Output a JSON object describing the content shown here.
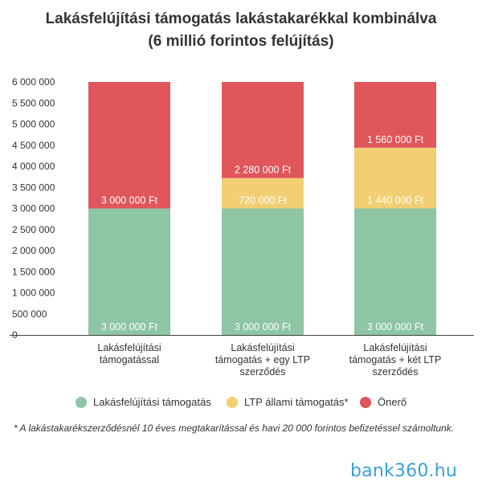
{
  "title": {
    "line1": "Lakásfelújítási támogatás lakástakarékkal kombinálva",
    "line2": "(6 millió forintos felújítás)"
  },
  "chart_data": {
    "type": "bar",
    "stacked": true,
    "categories": [
      [
        "Lakásfelújítási",
        "támogatással"
      ],
      [
        "Lakásfelújítási",
        "támogatás + egy LTP",
        "szerződés"
      ],
      [
        "Lakásfelújítási",
        "támogatás + két LTP",
        "szerződés"
      ]
    ],
    "series": [
      {
        "name": "Lakásfelújítási támogatás",
        "color": "#8ec5a5",
        "values": [
          3000000,
          3000000,
          3000000
        ],
        "labels": [
          "3 000 000 Ft",
          "3 000 000 Ft",
          "3 000 000 Ft"
        ]
      },
      {
        "name": "LTP állami támogatás*",
        "color": "#f2cf73",
        "values": [
          0,
          720000,
          1440000
        ],
        "labels": [
          "",
          "720 000 Ft",
          "1 440 000 Ft"
        ]
      },
      {
        "name": "Önerő",
        "color": "#e0565b",
        "values": [
          3000000,
          2280000,
          1560000
        ],
        "labels": [
          "3 000 000 Ft",
          "2 280 000 Ft",
          "1 560 000 Ft"
        ]
      }
    ],
    "y_ticks": [
      0,
      500000,
      1000000,
      1500000,
      2000000,
      2500000,
      3000000,
      3500000,
      4000000,
      4500000,
      5000000,
      5500000,
      6000000
    ],
    "y_tick_labels": [
      "0",
      "500 000",
      "1 000 000",
      "1 500 000",
      "2 000 000",
      "2 500 000",
      "3 000 000",
      "3 500 000",
      "4 000 000",
      "4 500 000",
      "5 000 000",
      "5 500 000",
      "6 000 000"
    ],
    "ylim": [
      0,
      6000000
    ],
    "legend_position": "bottom",
    "grid": false
  },
  "footnote": "* A lakástakarékszerződésnél 10 éves megtakarítással és havi 20 000 forintos befizetéssel számoltunk.",
  "logo": "bank360.hu"
}
